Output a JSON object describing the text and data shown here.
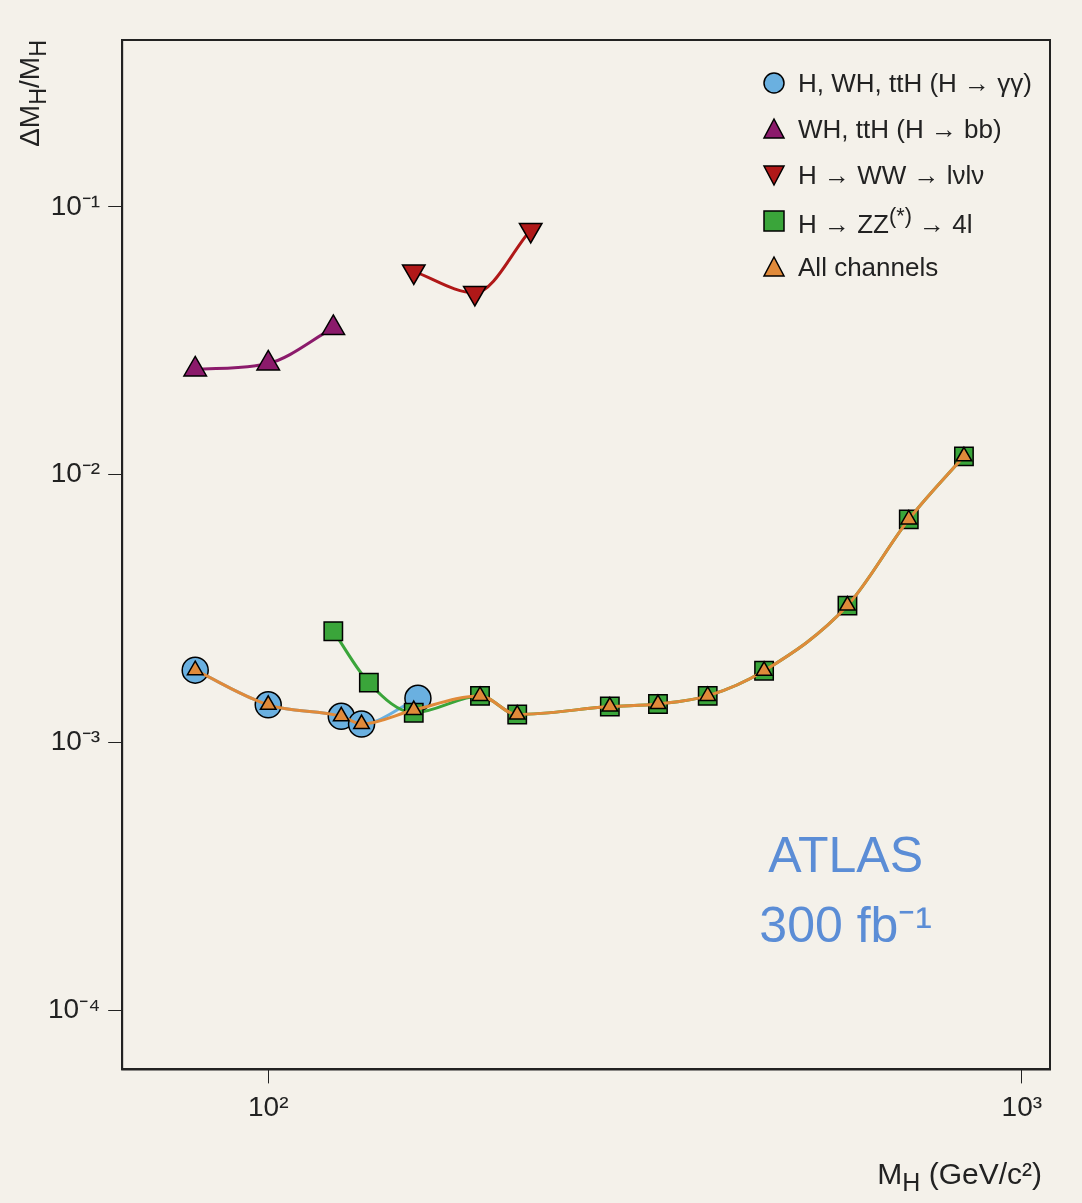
{
  "chart_data": {
    "type": "line",
    "xlabel": "M$_{H}$ (GeV/c²)",
    "ylabel": "ΔM$_{H}$/M$_{H}$",
    "log": "xy",
    "xlim": [
      64,
      1090
    ],
    "ylim": [
      6e-05,
      0.42
    ],
    "xticks": [
      {
        "value": 100,
        "label": "10²"
      },
      {
        "value": 1000,
        "label": "10³"
      }
    ],
    "yticks": [
      {
        "value": 0.0001,
        "label": "10⁻⁴"
      },
      {
        "value": 0.001,
        "label": "10⁻³"
      },
      {
        "value": 0.01,
        "label": "10⁻²"
      },
      {
        "value": 0.1,
        "label": "10⁻¹"
      }
    ],
    "grid": false,
    "legend": "top right",
    "line_style": "solid",
    "annotations": [
      "ATLAS",
      "300 fb⁻¹"
    ],
    "series": [
      {
        "name": "H, WH, ttH (H → γγ)",
        "color": "#6ab0e0",
        "marker": "circle",
        "x": [
          80,
          100,
          125,
          133,
          158
        ],
        "values": [
          0.00186,
          0.00138,
          0.00125,
          0.00117,
          0.00146
        ]
      },
      {
        "name": "WH, ttH (H → bb)",
        "color": "#8b1a6b",
        "marker": "triangle",
        "x": [
          80,
          100,
          122
        ],
        "values": [
          0.0247,
          0.026,
          0.0353
        ]
      },
      {
        "name": "H → WW → lνlν",
        "color": "#b01818",
        "marker": "triangle-down",
        "x": [
          156,
          188,
          223
        ],
        "values": [
          0.0574,
          0.0477,
          0.082
        ]
      },
      {
        "name": "H → ZZ$^{(*)}$ → 4l",
        "color": "#3aa53a",
        "marker": "square",
        "x": [
          122,
          136,
          156,
          191,
          214,
          284,
          329,
          383,
          455,
          587,
          708,
          838
        ],
        "values": [
          0.0026,
          0.00167,
          0.00129,
          0.00149,
          0.00127,
          0.00136,
          0.00139,
          0.00149,
          0.00185,
          0.00324,
          0.0068,
          0.0117
        ]
      },
      {
        "name": "All channels",
        "color": "#e08a3a",
        "marker": "triangle",
        "x": [
          80,
          100,
          125,
          133,
          156,
          191,
          214,
          284,
          329,
          383,
          455,
          587,
          708,
          838
        ],
        "values": [
          0.00186,
          0.00138,
          0.00125,
          0.00117,
          0.00132,
          0.00149,
          0.00127,
          0.00136,
          0.00139,
          0.00149,
          0.00185,
          0.00324,
          0.0068,
          0.0117
        ]
      }
    ]
  }
}
